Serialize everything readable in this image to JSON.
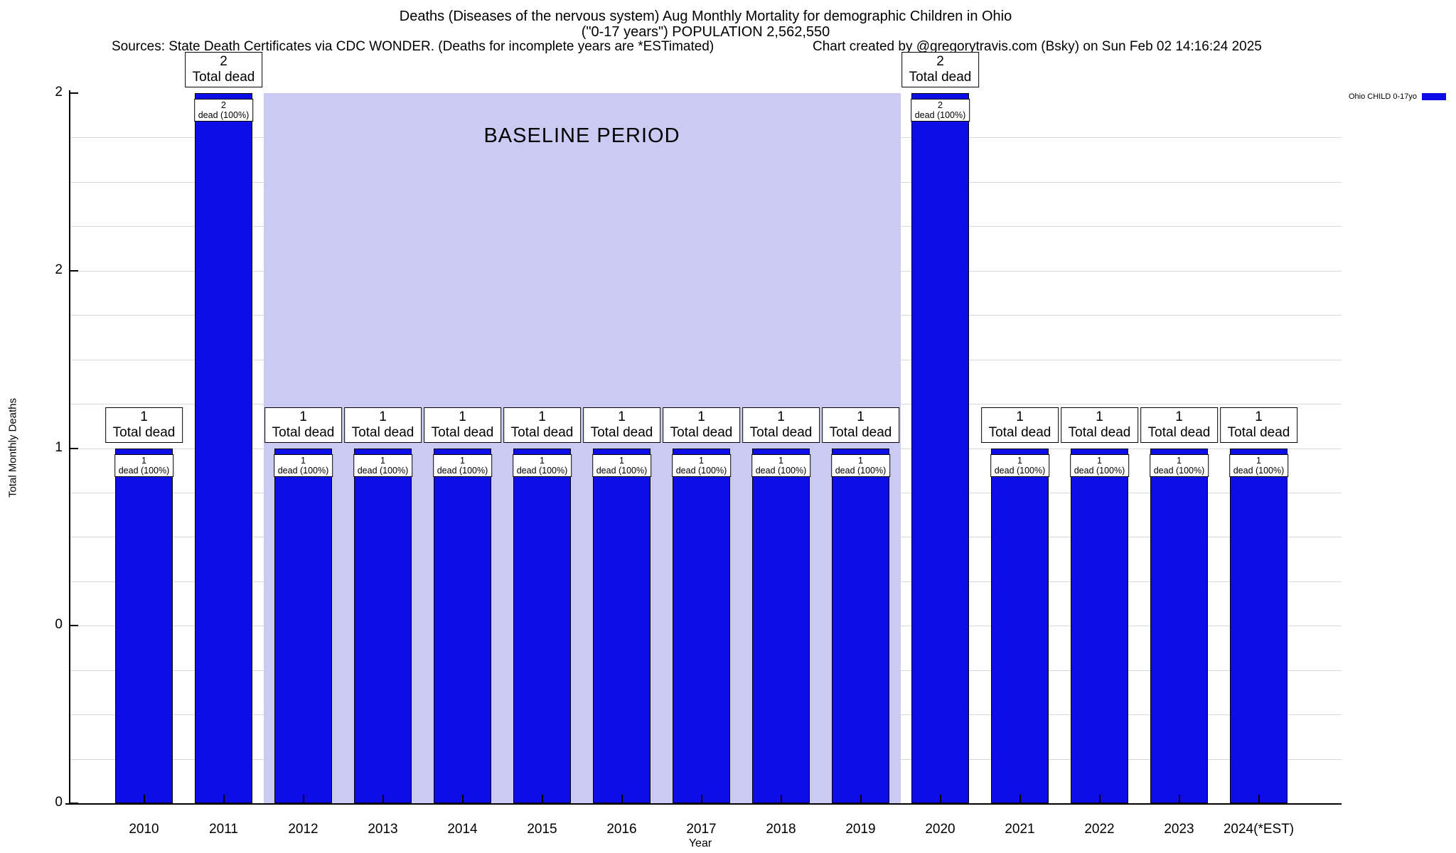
{
  "header": {
    "title_line1": "Deaths (Diseases of the nervous system) Aug Monthly Mortality for demographic Children in Ohio",
    "title_line2": "(\"0-17 years\") POPULATION 2,562,550",
    "sources": "Sources: State Death Certificates via CDC WONDER. (Deaths for incomplete years are *ESTimated)",
    "credit": "Chart created by @gregorytravis.com (Bsky) on Sun Feb 02 14:16:24 2025"
  },
  "chart_data": {
    "type": "bar",
    "title": "Deaths (Diseases of the nervous system) Aug Monthly Mortality for demographic Children in Ohio (\"0-17 years\") POPULATION 2,562,550",
    "xlabel": "Year",
    "ylabel": "Total Monthly Deaths",
    "ylim": [
      0,
      2
    ],
    "grid": true,
    "grid_divisions": 16,
    "legend_position": "top-right-outside",
    "y_ticks": [
      {
        "value": 2.0,
        "label": "2"
      },
      {
        "value": 1.5,
        "label": "2"
      },
      {
        "value": 1.0,
        "label": "1"
      },
      {
        "value": 0.5,
        "label": "0"
      },
      {
        "value": 0.0,
        "label": "0"
      }
    ],
    "categories": [
      "2010",
      "2011",
      "2012",
      "2013",
      "2014",
      "2015",
      "2016",
      "2017",
      "2018",
      "2019",
      "2020",
      "2021",
      "2022",
      "2023",
      "2024(*EST)"
    ],
    "series": [
      {
        "name": "Ohio CHILD 0-17yo",
        "color": "#0d0de8",
        "values": [
          1,
          2,
          1,
          1,
          1,
          1,
          1,
          1,
          1,
          1,
          2,
          1,
          1,
          1,
          1
        ]
      }
    ],
    "bar_labels": {
      "above_text": "Total dead",
      "inner_text": "dead (100%)"
    },
    "baseline_band": {
      "label": "BASELINE PERIOD",
      "from_category": "2012",
      "to_category": "2019",
      "color": "#cacaf3"
    }
  },
  "colors": {
    "bar": "#0d0de8",
    "bar_border": "#000000",
    "baseline_band": "#cacaf3",
    "grid": "#d8d8d8",
    "axis": "#000000",
    "background": "#ffffff"
  }
}
